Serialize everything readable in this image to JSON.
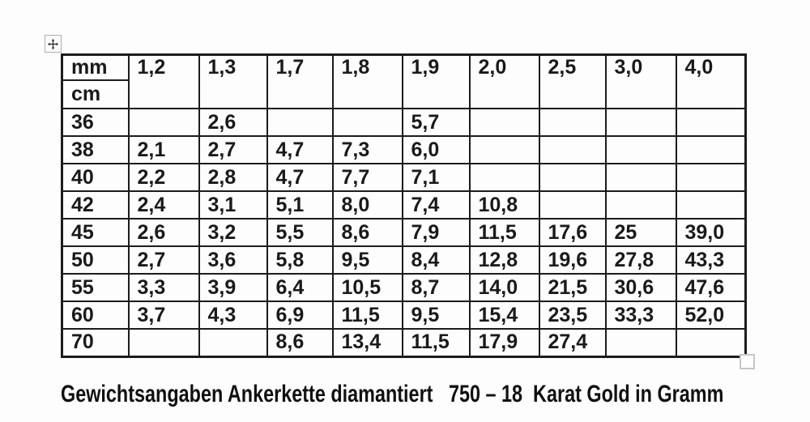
{
  "table": {
    "unit_row_label": "mm",
    "unit_col_label": "cm",
    "columns": [
      "1,2",
      "1,3",
      "1,7",
      "1,8",
      "1,9",
      "2,0",
      "2,5",
      "3,0",
      "4,0"
    ],
    "rows": [
      {
        "label": "36",
        "values": [
          "",
          "2,6",
          "",
          "",
          "5,7",
          "",
          "",
          "",
          ""
        ]
      },
      {
        "label": "38",
        "values": [
          "2,1",
          "2,7",
          "4,7",
          "7,3",
          "6,0",
          "",
          "",
          "",
          ""
        ]
      },
      {
        "label": "40",
        "values": [
          "2,2",
          "2,8",
          "4,7",
          "7,7",
          "7,1",
          "",
          "",
          "",
          ""
        ]
      },
      {
        "label": "42",
        "values": [
          "2,4",
          "3,1",
          "5,1",
          "8,0",
          "7,4",
          "10,8",
          "",
          "",
          ""
        ]
      },
      {
        "label": "45",
        "values": [
          "2,6",
          "3,2",
          "5,5",
          "8,6",
          "7,9",
          "11,5",
          "17,6",
          "25",
          "39,0"
        ]
      },
      {
        "label": "50",
        "values": [
          "2,7",
          "3,6",
          "5,8",
          "9,5",
          "8,4",
          "12,8",
          "19,6",
          "27,8",
          "43,3"
        ]
      },
      {
        "label": "55",
        "values": [
          "3,3",
          "3,9",
          "6,4",
          "10,5",
          "8,7",
          "14,0",
          "21,5",
          "30,6",
          "47,6"
        ]
      },
      {
        "label": "60",
        "values": [
          "3,7",
          "4,3",
          "6,9",
          "11,5",
          "9,5",
          "15,4",
          "23,5",
          "33,3",
          "52,0"
        ]
      },
      {
        "label": "70",
        "values": [
          "",
          "",
          "8,6",
          "13,4",
          "11,5",
          "17,9",
          "27,4",
          "",
          ""
        ]
      }
    ]
  },
  "caption": "Gewichtsangaben Ankerkette diamantiert   750 – 18  Karat Gold in Gramm",
  "icons": {
    "move_handle": "four-way-move-arrow",
    "resize_handle": "empty-square"
  },
  "colors": {
    "border": "#1c1c1c",
    "text": "#1a1a1a",
    "background": "#fdfdfd",
    "handle_border": "#b0b0b0",
    "resize_handle_border": "#c6c6c6"
  }
}
